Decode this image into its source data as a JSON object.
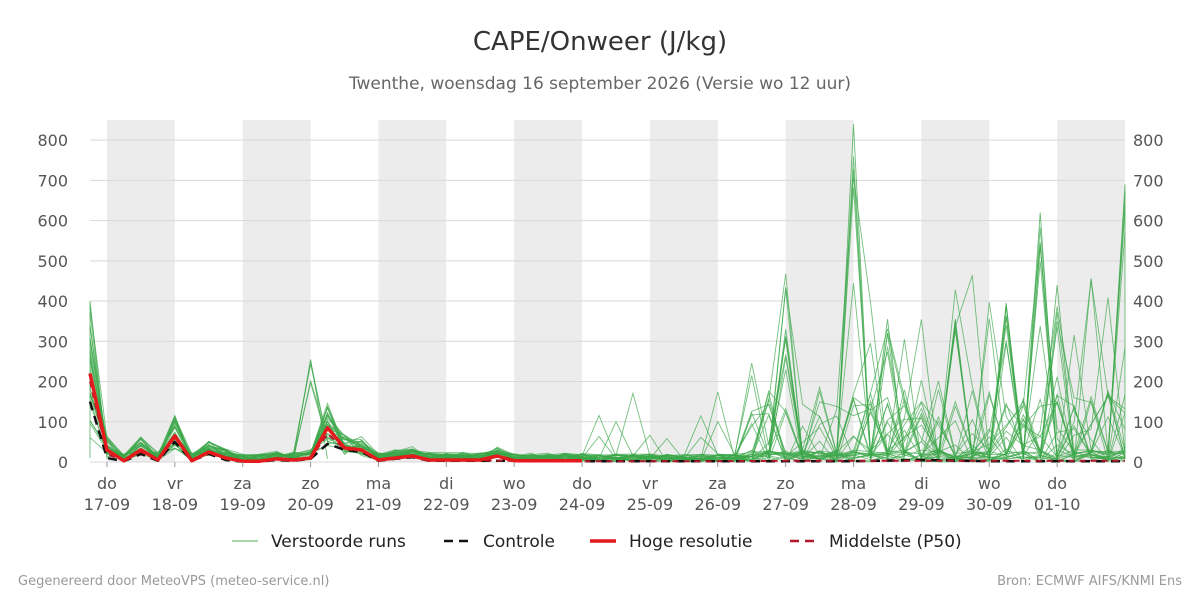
{
  "chart_data": {
    "type": "line",
    "title": "CAPE/Onweer (J/kg)",
    "subtitle": "Twenthe, woensdag 16 september 2026 (Versie wo 12 uur)",
    "ylim": [
      0,
      850
    ],
    "yticks": [
      0,
      100,
      200,
      300,
      400,
      500,
      600,
      700,
      800
    ],
    "xlim": [
      -0.25,
      15.0
    ],
    "x_tick_positions": [
      0,
      1,
      2,
      3,
      4,
      5,
      6,
      7,
      8,
      9,
      10,
      11,
      12,
      13,
      14,
      15
    ],
    "x_tick_labels": [
      [
        "do",
        "17-09"
      ],
      [
        "vr",
        "18-09"
      ],
      [
        "za",
        "19-09"
      ],
      [
        "zo",
        "20-09"
      ],
      [
        "ma",
        "21-09"
      ],
      [
        "di",
        "22-09"
      ],
      [
        "wo",
        "23-09"
      ],
      [
        "do",
        "24-09"
      ],
      [
        "vr",
        "25-09"
      ],
      [
        "za",
        "26-09"
      ],
      [
        "zo",
        "27-09"
      ],
      [
        "ma",
        "28-09"
      ],
      [
        "di",
        "29-09"
      ],
      [
        "wo",
        "30-09"
      ],
      [
        "do",
        "01-10"
      ]
    ],
    "shaded_periods": [
      [
        0,
        1
      ],
      [
        2,
        3
      ],
      [
        4,
        5
      ],
      [
        6,
        7
      ],
      [
        8,
        9
      ],
      [
        10,
        11
      ],
      [
        12,
        13
      ],
      [
        14,
        15
      ]
    ],
    "grid": true,
    "legend_position": "bottom",
    "legend": [
      {
        "label": "Verstoorde runs",
        "color": "#4caf50",
        "style": "thin"
      },
      {
        "label": "Controle",
        "color": "#111111",
        "style": "dashed"
      },
      {
        "label": "Hoge resolutie",
        "color": "#e41a1c",
        "style": "thick"
      },
      {
        "label": "Middelste (P50)",
        "color": "#b2182b",
        "style": "dashed"
      }
    ],
    "series": [
      {
        "name": "Hoge resolutie",
        "color": "#e41a1c",
        "x": [
          -0.25,
          0,
          0.25,
          0.5,
          0.75,
          1,
          1.25,
          1.5,
          1.75,
          2,
          2.25,
          2.5,
          2.75,
          3,
          3.25,
          3.5,
          3.75,
          4,
          4.25,
          4.5,
          4.75,
          5,
          5.25,
          5.5,
          5.75,
          6,
          6.25,
          6.5,
          6.75,
          7
        ],
        "y": [
          220,
          30,
          3,
          30,
          5,
          65,
          3,
          25,
          10,
          2,
          2,
          8,
          5,
          10,
          85,
          35,
          30,
          5,
          10,
          15,
          5,
          5,
          5,
          5,
          15,
          3,
          3,
          3,
          3,
          3
        ]
      },
      {
        "name": "Controle",
        "color": "#111111",
        "x": [
          -0.25,
          0,
          0.25,
          0.5,
          0.75,
          1,
          1.25,
          1.5,
          1.75,
          2,
          2.25,
          2.5,
          2.75,
          3,
          3.25,
          3.5,
          3.75,
          4,
          4.25,
          4.5,
          4.75,
          5,
          5.5,
          6,
          7,
          8,
          9,
          10,
          11,
          12,
          13,
          14,
          15
        ],
        "y": [
          150,
          10,
          2,
          20,
          3,
          50,
          3,
          20,
          5,
          1,
          1,
          5,
          3,
          8,
          45,
          30,
          25,
          3,
          8,
          12,
          3,
          3,
          3,
          3,
          2,
          2,
          2,
          2,
          2,
          5,
          2,
          2,
          2
        ]
      },
      {
        "name": "Middelste (P50)",
        "color": "#b2182b",
        "x": [
          -0.25,
          0,
          0.25,
          0.5,
          0.75,
          1,
          1.25,
          1.5,
          1.75,
          2,
          2.25,
          2.5,
          2.75,
          3,
          3.25,
          3.5,
          3.75,
          4,
          4.25,
          4.5,
          4.75,
          5,
          5.5,
          6,
          7,
          8,
          9,
          10,
          11,
          12,
          13,
          14,
          15
        ],
        "y": [
          200,
          20,
          3,
          25,
          5,
          60,
          3,
          22,
          8,
          2,
          2,
          6,
          4,
          9,
          70,
          32,
          28,
          4,
          9,
          14,
          4,
          4,
          4,
          3,
          2,
          2,
          2,
          3,
          3,
          3,
          3,
          3,
          3
        ]
      }
    ],
    "ensemble_peaks": [
      {
        "x": -0.25,
        "y": 400
      },
      {
        "x": 3.0,
        "y": 255
      },
      {
        "x": 10.0,
        "y": 330
      },
      {
        "x": 11.0,
        "y": 840
      },
      {
        "x": 11.5,
        "y": 355
      },
      {
        "x": 12.5,
        "y": 355
      },
      {
        "x": 13.25,
        "y": 395
      },
      {
        "x": 13.75,
        "y": 620
      },
      {
        "x": 14.0,
        "y": 440
      },
      {
        "x": 15.0,
        "y": 690
      }
    ]
  },
  "footer": {
    "left": "Gegenereerd door MeteoVPS (meteo-service.nl)",
    "right": "Bron: ECMWF AIFS/KNMI Ens"
  }
}
